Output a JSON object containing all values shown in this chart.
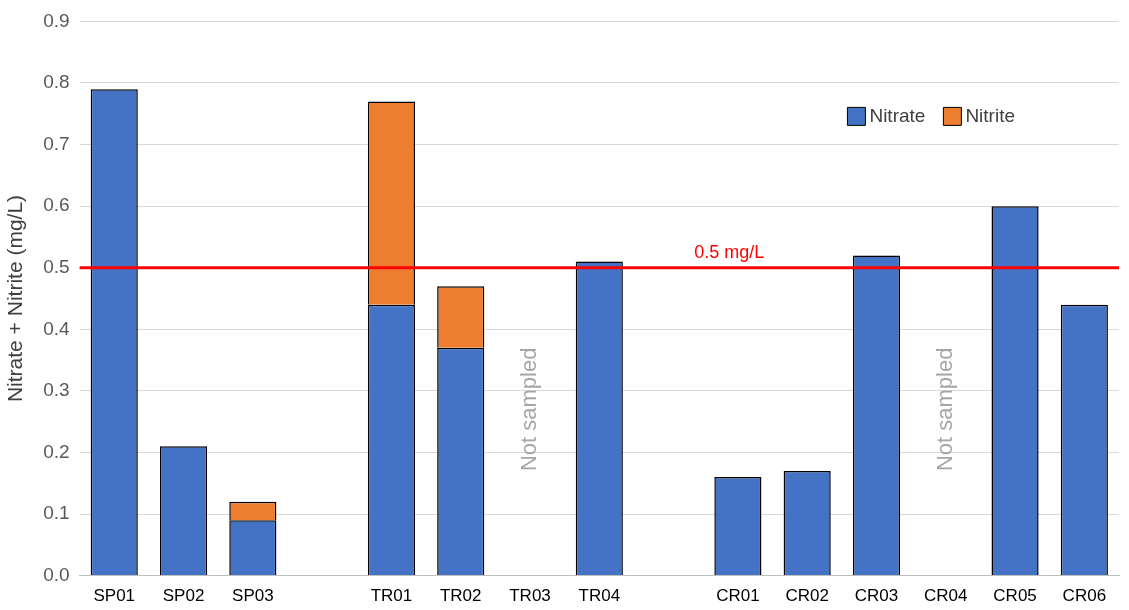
{
  "chart_data": {
    "type": "bar",
    "ylabel": "Nitrate + Nitrite (mg/L)",
    "categories": [
      "SP01",
      "SP02",
      "SP03",
      null,
      "TR01",
      "TR02",
      "TR03",
      "TR04",
      null,
      "CR01",
      "CR02",
      "CR03",
      "CR04",
      "CR05",
      "CR06"
    ],
    "stacked": true,
    "series": [
      {
        "name": "Nitrate",
        "color": "#4472c4",
        "values": [
          0.79,
          0.21,
          0.09,
          null,
          0.44,
          0.37,
          null,
          0.51,
          null,
          0.16,
          0.17,
          0.52,
          null,
          0.6,
          0.44
        ]
      },
      {
        "name": "Nitrite",
        "color": "#ed7d31",
        "values": [
          null,
          null,
          0.03,
          null,
          0.33,
          0.1,
          null,
          null,
          null,
          null,
          null,
          null,
          null,
          null,
          null
        ]
      }
    ],
    "ylim": [
      0,
      0.9
    ],
    "yticks": [
      {
        "value": 0,
        "label": "0.0"
      },
      0.1,
      0.2,
      0.3,
      0.4,
      0.5,
      0.6,
      0.7,
      0.8,
      0.9
    ],
    "grid": "y",
    "legend": "top right",
    "ref_lines": [
      {
        "axis": "y",
        "value": 0.5,
        "label": "0.5 mg/L",
        "color": "#ff0000"
      }
    ],
    "annotations": [
      "Not sampled",
      "Not sampled"
    ]
  }
}
